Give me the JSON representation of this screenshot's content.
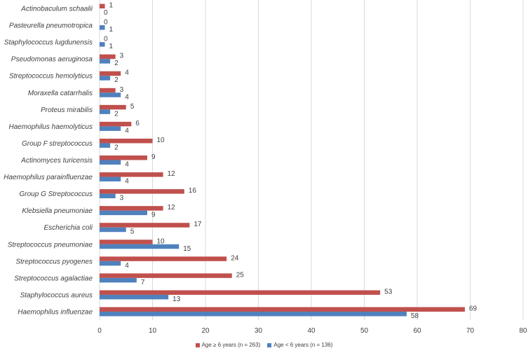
{
  "chart_data": {
    "type": "bar",
    "orientation": "horizontal",
    "categories": [
      "Actinobaculum schaalii",
      "Pasteurella pneumotropica",
      "Staphylococcus lugdunensis",
      "Pseudomonas aeruginosa",
      "Streptococcus hemolyticus",
      "Moraxella catarrhalis",
      "Proteus mirabilis",
      "Haemophilus haemolyticus",
      "Group F streptococcus",
      "Actinomyces turicensis",
      "Haemophilus parainfluenzae",
      "Group G Streptococcus",
      "Klebsiella pneumoniae",
      "Escherichia coli",
      "Streptococcus pneumoniae",
      "Streptococcus pyogenes",
      "Streptococcus agalactiae",
      "Staphylococcus aureus",
      "Haemophilus influenzae"
    ],
    "series": [
      {
        "name": "Age ≥ 6 years (n = 263)",
        "color": "#c0504d",
        "values": [
          1,
          0,
          0,
          3,
          4,
          3,
          5,
          6,
          10,
          9,
          12,
          16,
          12,
          17,
          10,
          24,
          25,
          53,
          69
        ]
      },
      {
        "name": "Age < 6 years (n = 136)",
        "color": "#4f81bd",
        "values": [
          0,
          1,
          1,
          2,
          2,
          4,
          2,
          4,
          2,
          4,
          4,
          3,
          9,
          5,
          15,
          4,
          7,
          13,
          58
        ]
      }
    ],
    "xlim": [
      0,
      80
    ],
    "xticks": [
      0,
      10,
      20,
      30,
      40,
      50,
      60,
      70,
      80
    ],
    "grid": true,
    "legend_position": "bottom",
    "title": "",
    "xlabel": "",
    "ylabel": ""
  }
}
